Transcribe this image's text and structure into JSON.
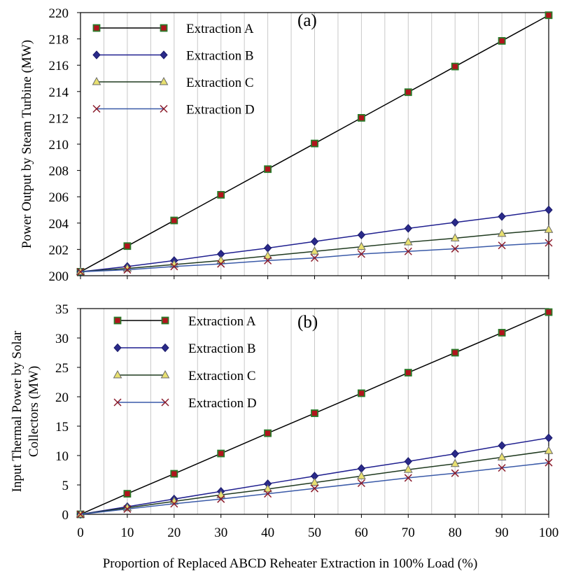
{
  "chart_data": [
    {
      "type": "line",
      "panel_label": "(a)",
      "ylabel": "Power Output by Steam Turbine (MW)",
      "xlabel": "",
      "ylim": [
        200,
        220
      ],
      "yticks": [
        "200",
        "202",
        "204",
        "206",
        "208",
        "210",
        "212",
        "214",
        "216",
        "218",
        "220"
      ],
      "xlim": [
        0,
        100
      ],
      "x": [
        0,
        10,
        20,
        30,
        40,
        50,
        60,
        70,
        80,
        90,
        100
      ],
      "legend_position": "top-left",
      "vertical_grid": true,
      "series": [
        {
          "name": "Extraction A",
          "marker": "square",
          "line_color": "#000000",
          "marker_fill": "#b2141c",
          "marker_edge": "#2a7a2a",
          "values": [
            200.3,
            202.25,
            204.2,
            206.15,
            208.1,
            210.05,
            212.0,
            213.95,
            215.9,
            217.85,
            219.8
          ]
        },
        {
          "name": "Extraction B",
          "marker": "diamond",
          "line_color": "#1f1f8f",
          "marker_fill": "#2a2a8a",
          "marker_edge": "#1a1a6a",
          "values": [
            200.3,
            200.7,
            201.15,
            201.65,
            202.1,
            202.6,
            203.1,
            203.6,
            204.05,
            204.5,
            205.0
          ]
        },
        {
          "name": "Extraction C",
          "marker": "triangle",
          "line_color": "#1f3a1f",
          "marker_fill": "#e8e070",
          "marker_edge": "#6a6a6a",
          "values": [
            200.3,
            200.55,
            200.85,
            201.15,
            201.5,
            201.85,
            202.2,
            202.55,
            202.85,
            203.2,
            203.5
          ]
        },
        {
          "name": "Extraction D",
          "marker": "x",
          "line_color": "#3a5aa8",
          "marker_fill": "none",
          "marker_edge": "#8a1a2a",
          "values": [
            200.3,
            200.45,
            200.7,
            200.9,
            201.15,
            201.35,
            201.65,
            201.85,
            202.05,
            202.3,
            202.5
          ]
        }
      ]
    },
    {
      "type": "line",
      "panel_label": "(b)",
      "ylabel": "Input Thermal Power by Solar Collectors (MW)",
      "xlabel": "Proportion of Replaced ABCD Reheater Extraction in 100% Load (%)",
      "ylim": [
        0,
        35
      ],
      "yticks": [
        "0",
        "5",
        "10",
        "15",
        "20",
        "25",
        "30",
        "35"
      ],
      "xlim": [
        0,
        100
      ],
      "x": [
        0,
        10,
        20,
        30,
        40,
        50,
        60,
        70,
        80,
        90,
        100
      ],
      "xticks": [
        "0",
        "10",
        "20",
        "30",
        "40",
        "50",
        "60",
        "70",
        "80",
        "90",
        "100"
      ],
      "legend_position": "top-left",
      "vertical_grid": true,
      "series": [
        {
          "name": "Extraction A",
          "marker": "square",
          "line_color": "#000000",
          "marker_fill": "#b2141c",
          "marker_edge": "#2a7a2a",
          "values": [
            0,
            3.5,
            6.9,
            10.35,
            13.8,
            17.2,
            20.6,
            24.1,
            27.5,
            30.9,
            34.4
          ]
        },
        {
          "name": "Extraction B",
          "marker": "diamond",
          "line_color": "#1f1f8f",
          "marker_fill": "#2a2a8a",
          "marker_edge": "#1a1a6a",
          "values": [
            0,
            1.3,
            2.6,
            3.9,
            5.2,
            6.5,
            7.8,
            9.0,
            10.3,
            11.7,
            13.0
          ]
        },
        {
          "name": "Extraction C",
          "marker": "triangle",
          "line_color": "#1f3a1f",
          "marker_fill": "#e8e070",
          "marker_edge": "#6a6a6a",
          "values": [
            0,
            1.1,
            2.2,
            3.3,
            4.3,
            5.4,
            6.5,
            7.6,
            8.6,
            9.7,
            10.8
          ]
        },
        {
          "name": "Extraction D",
          "marker": "x",
          "line_color": "#3a5aa8",
          "marker_fill": "none",
          "marker_edge": "#8a1a2a",
          "values": [
            0,
            0.9,
            1.8,
            2.6,
            3.5,
            4.4,
            5.3,
            6.2,
            7.0,
            7.9,
            8.8
          ]
        }
      ]
    }
  ]
}
